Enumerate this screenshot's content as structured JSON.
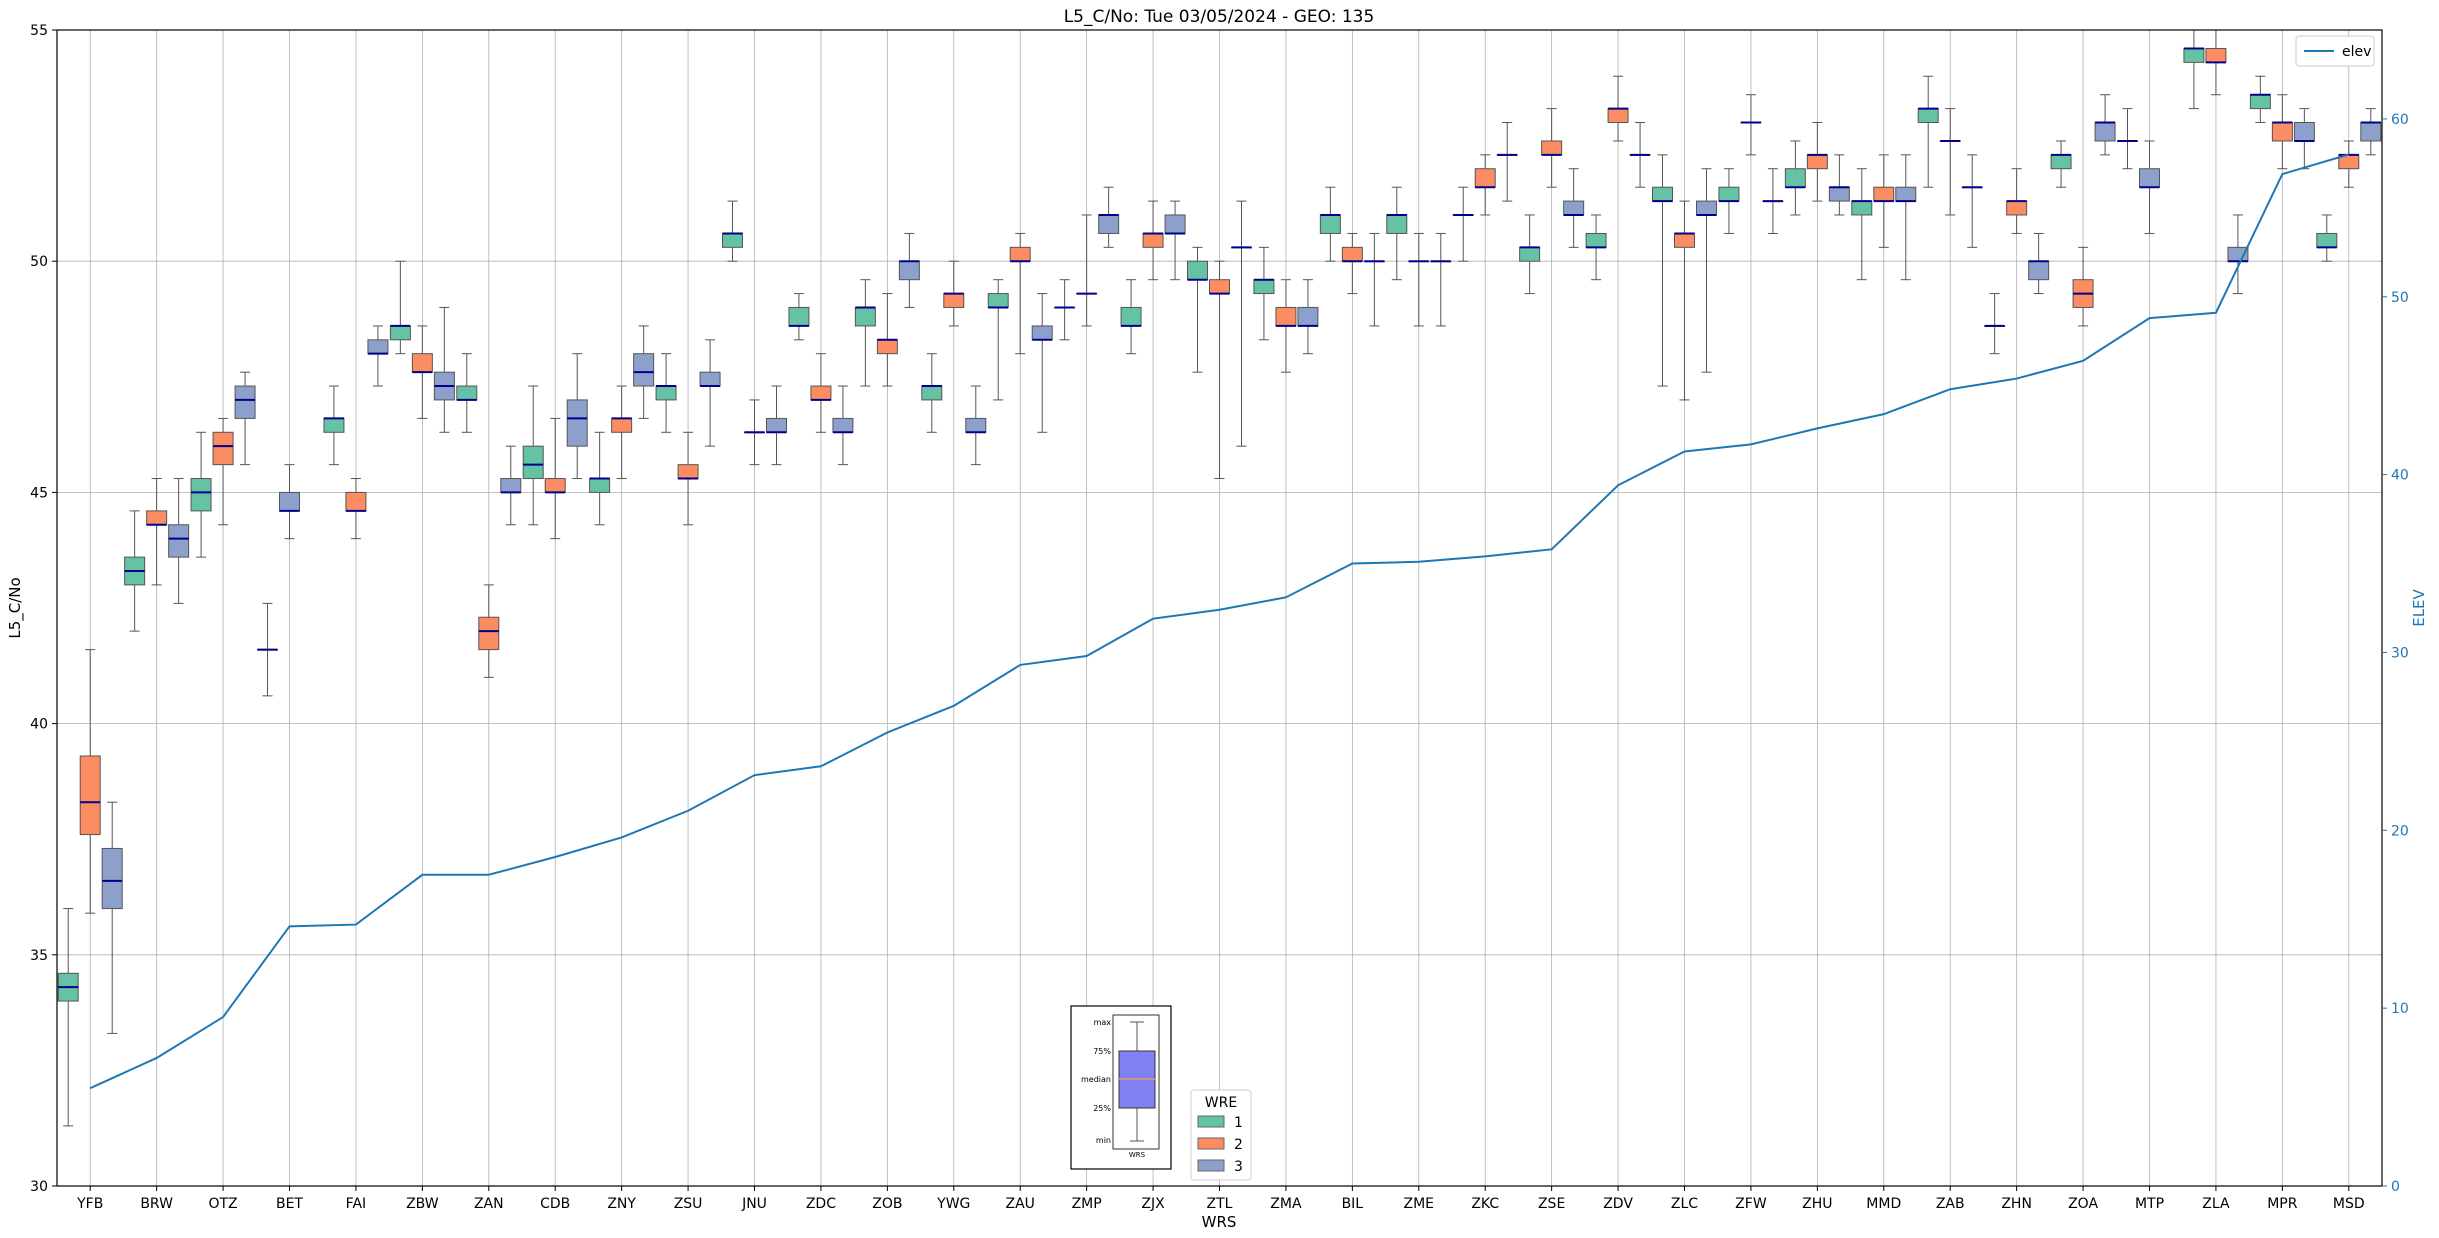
{
  "chart_data": {
    "type": "box",
    "title": "L5_C/No: Tue 03/05/2024 - GEO: 135",
    "xlabel": "WRS",
    "ylabel": "L5_C/No",
    "y2label": "ELEV",
    "ylim": [
      30,
      55
    ],
    "y2lim": [
      0,
      65
    ],
    "yticks": [
      30,
      35,
      40,
      45,
      50,
      55
    ],
    "y2ticks": [
      0,
      10,
      20,
      30,
      40,
      50,
      60
    ],
    "grid": true,
    "categories": [
      "YFB",
      "BRW",
      "OTZ",
      "BET",
      "FAI",
      "ZBW",
      "ZAN",
      "CDB",
      "ZNY",
      "ZSU",
      "JNU",
      "ZDC",
      "ZOB",
      "YWG",
      "ZAU",
      "ZMP",
      "ZJX",
      "ZTL",
      "ZMA",
      "BIL",
      "ZME",
      "ZKC",
      "ZSE",
      "ZDV",
      "ZLC",
      "ZFW",
      "ZHU",
      "MMD",
      "ZAB",
      "ZHN",
      "ZOA",
      "MTP",
      "ZLA",
      "MPR",
      "MSD"
    ],
    "wre_colors": {
      "1": "#66c2a5",
      "2": "#fc8d62",
      "3": "#8da0cb"
    },
    "median_color": "#00008b",
    "legend_wre": {
      "title": "WRE",
      "entries": [
        "1",
        "2",
        "3"
      ],
      "placement": "bottom-center"
    },
    "legend_elev": {
      "entries": [
        "elev"
      ],
      "placement": "top-right",
      "color": "#1f77b4"
    },
    "inset_key": {
      "labels": [
        "max",
        "75%",
        "median",
        "25%",
        "min"
      ],
      "xlabel": "WRS",
      "placement": "bottom-center"
    },
    "boxes": [
      {
        "site": "YFB",
        "wre": 1,
        "min": 31.3,
        "q1": 34.0,
        "median": 34.3,
        "q3": 34.6,
        "max": 36.0
      },
      {
        "site": "YFB",
        "wre": 2,
        "min": 35.9,
        "q1": 37.6,
        "median": 38.3,
        "q3": 39.3,
        "max": 41.6
      },
      {
        "site": "YFB",
        "wre": 3,
        "min": 33.3,
        "q1": 36.0,
        "median": 36.6,
        "q3": 37.3,
        "max": 38.3
      },
      {
        "site": "BRW",
        "wre": 1,
        "min": 42.0,
        "q1": 43.0,
        "median": 43.3,
        "q3": 43.6,
        "max": 44.6
      },
      {
        "site": "BRW",
        "wre": 2,
        "min": 43.0,
        "q1": 44.3,
        "median": 44.3,
        "q3": 44.6,
        "max": 45.3
      },
      {
        "site": "BRW",
        "wre": 3,
        "min": 42.6,
        "q1": 43.6,
        "median": 44.0,
        "q3": 44.3,
        "max": 45.3
      },
      {
        "site": "OTZ",
        "wre": 1,
        "min": 43.6,
        "q1": 44.6,
        "median": 45.0,
        "q3": 45.3,
        "max": 46.3
      },
      {
        "site": "OTZ",
        "wre": 2,
        "min": 44.3,
        "q1": 45.6,
        "median": 46.0,
        "q3": 46.3,
        "max": 46.6
      },
      {
        "site": "OTZ",
        "wre": 3,
        "min": 45.6,
        "q1": 46.6,
        "median": 47.0,
        "q3": 47.3,
        "max": 47.6
      },
      {
        "site": "BET",
        "wre": 2,
        "min": 40.6,
        "q1": 41.6,
        "median": 41.6,
        "q3": 41.6,
        "max": 42.6
      },
      {
        "site": "BET",
        "wre": 3,
        "min": 44.0,
        "q1": 44.6,
        "median": 44.6,
        "q3": 45.0,
        "max": 45.6
      },
      {
        "site": "FAI",
        "wre": 1,
        "min": 45.6,
        "q1": 46.3,
        "median": 46.6,
        "q3": 46.6,
        "max": 47.3
      },
      {
        "site": "FAI",
        "wre": 2,
        "min": 44.0,
        "q1": 44.6,
        "median": 44.6,
        "q3": 45.0,
        "max": 45.3
      },
      {
        "site": "FAI",
        "wre": 3,
        "min": 47.3,
        "q1": 48.0,
        "median": 48.0,
        "q3": 48.3,
        "max": 48.6
      },
      {
        "site": "ZBW",
        "wre": 1,
        "min": 48.0,
        "q1": 48.3,
        "median": 48.6,
        "q3": 48.6,
        "max": 50.0
      },
      {
        "site": "ZBW",
        "wre": 2,
        "min": 46.6,
        "q1": 47.6,
        "median": 47.6,
        "q3": 48.0,
        "max": 48.6
      },
      {
        "site": "ZBW",
        "wre": 3,
        "min": 46.3,
        "q1": 47.0,
        "median": 47.3,
        "q3": 47.6,
        "max": 49.0
      },
      {
        "site": "ZAN",
        "wre": 1,
        "min": 46.3,
        "q1": 47.0,
        "median": 47.0,
        "q3": 47.3,
        "max": 48.0
      },
      {
        "site": "ZAN",
        "wre": 2,
        "min": 41.0,
        "q1": 41.6,
        "median": 42.0,
        "q3": 42.3,
        "max": 43.0
      },
      {
        "site": "ZAN",
        "wre": 3,
        "min": 44.3,
        "q1": 45.0,
        "median": 45.0,
        "q3": 45.3,
        "max": 46.0
      },
      {
        "site": "CDB",
        "wre": 1,
        "min": 44.3,
        "q1": 45.3,
        "median": 45.6,
        "q3": 46.0,
        "max": 47.3
      },
      {
        "site": "CDB",
        "wre": 2,
        "min": 44.0,
        "q1": 45.0,
        "median": 45.0,
        "q3": 45.3,
        "max": 46.6
      },
      {
        "site": "CDB",
        "wre": 3,
        "min": 45.3,
        "q1": 46.0,
        "median": 46.6,
        "q3": 47.0,
        "max": 48.0
      },
      {
        "site": "ZNY",
        "wre": 1,
        "min": 44.3,
        "q1": 45.0,
        "median": 45.3,
        "q3": 45.3,
        "max": 46.3
      },
      {
        "site": "ZNY",
        "wre": 2,
        "min": 45.3,
        "q1": 46.3,
        "median": 46.6,
        "q3": 46.6,
        "max": 47.3
      },
      {
        "site": "ZNY",
        "wre": 3,
        "min": 46.6,
        "q1": 47.3,
        "median": 47.6,
        "q3": 48.0,
        "max": 48.6
      },
      {
        "site": "ZSU",
        "wre": 1,
        "min": 46.3,
        "q1": 47.0,
        "median": 47.3,
        "q3": 47.3,
        "max": 48.0
      },
      {
        "site": "ZSU",
        "wre": 2,
        "min": 44.3,
        "q1": 45.3,
        "median": 45.3,
        "q3": 45.6,
        "max": 46.3
      },
      {
        "site": "ZSU",
        "wre": 3,
        "min": 46.0,
        "q1": 47.3,
        "median": 47.3,
        "q3": 47.6,
        "max": 48.3
      },
      {
        "site": "JNU",
        "wre": 1,
        "min": 50.0,
        "q1": 50.3,
        "median": 50.6,
        "q3": 50.6,
        "max": 51.3
      },
      {
        "site": "JNU",
        "wre": 2,
        "min": 45.6,
        "q1": 46.3,
        "median": 46.3,
        "q3": 46.3,
        "max": 47.0
      },
      {
        "site": "JNU",
        "wre": 3,
        "min": 45.6,
        "q1": 46.3,
        "median": 46.3,
        "q3": 46.6,
        "max": 47.3
      },
      {
        "site": "ZDC",
        "wre": 1,
        "min": 48.3,
        "q1": 48.6,
        "median": 48.6,
        "q3": 49.0,
        "max": 49.3
      },
      {
        "site": "ZDC",
        "wre": 2,
        "min": 46.3,
        "q1": 47.0,
        "median": 47.0,
        "q3": 47.3,
        "max": 48.0
      },
      {
        "site": "ZDC",
        "wre": 3,
        "min": 45.6,
        "q1": 46.3,
        "median": 46.3,
        "q3": 46.6,
        "max": 47.3
      },
      {
        "site": "ZOB",
        "wre": 1,
        "min": 47.3,
        "q1": 48.6,
        "median": 49.0,
        "q3": 49.0,
        "max": 49.6
      },
      {
        "site": "ZOB",
        "wre": 2,
        "min": 47.3,
        "q1": 48.0,
        "median": 48.3,
        "q3": 48.3,
        "max": 49.3
      },
      {
        "site": "ZOB",
        "wre": 3,
        "min": 49.0,
        "q1": 49.6,
        "median": 50.0,
        "q3": 50.0,
        "max": 50.6
      },
      {
        "site": "YWG",
        "wre": 1,
        "min": 46.3,
        "q1": 47.0,
        "median": 47.3,
        "q3": 47.3,
        "max": 48.0
      },
      {
        "site": "YWG",
        "wre": 2,
        "min": 48.6,
        "q1": 49.0,
        "median": 49.3,
        "q3": 49.3,
        "max": 50.0
      },
      {
        "site": "YWG",
        "wre": 3,
        "min": 45.6,
        "q1": 46.3,
        "median": 46.3,
        "q3": 46.6,
        "max": 47.3
      },
      {
        "site": "ZAU",
        "wre": 1,
        "min": 47.0,
        "q1": 49.0,
        "median": 49.0,
        "q3": 49.3,
        "max": 49.6
      },
      {
        "site": "ZAU",
        "wre": 2,
        "min": 48.0,
        "q1": 50.0,
        "median": 50.0,
        "q3": 50.3,
        "max": 50.6
      },
      {
        "site": "ZAU",
        "wre": 3,
        "min": 46.3,
        "q1": 48.3,
        "median": 48.3,
        "q3": 48.6,
        "max": 49.3
      },
      {
        "site": "ZMP",
        "wre": 2,
        "min": 48.3,
        "q1": 49.0,
        "median": 49.0,
        "q3": 49.0,
        "max": 49.6
      },
      {
        "site": "ZMP",
        "wre": 2,
        "min": 48.6,
        "q1": 49.3,
        "median": 49.3,
        "q3": 49.3,
        "max": 51.0
      },
      {
        "site": "ZMP",
        "wre": 3,
        "min": 50.3,
        "q1": 50.6,
        "median": 51.0,
        "q3": 51.0,
        "max": 51.6
      },
      {
        "site": "ZJX",
        "wre": 1,
        "min": 48.0,
        "q1": 48.6,
        "median": 48.6,
        "q3": 49.0,
        "max": 49.6
      },
      {
        "site": "ZJX",
        "wre": 2,
        "min": 49.6,
        "q1": 50.3,
        "median": 50.6,
        "q3": 50.6,
        "max": 51.3
      },
      {
        "site": "ZJX",
        "wre": 3,
        "min": 49.6,
        "q1": 50.6,
        "median": 50.6,
        "q3": 51.0,
        "max": 51.3
      },
      {
        "site": "ZTL",
        "wre": 1,
        "min": 47.6,
        "q1": 49.6,
        "median": 49.6,
        "q3": 50.0,
        "max": 50.3
      },
      {
        "site": "ZTL",
        "wre": 2,
        "min": 45.3,
        "q1": 49.3,
        "median": 49.3,
        "q3": 49.6,
        "max": 50.0
      },
      {
        "site": "ZTL",
        "wre": 2,
        "min": 46.0,
        "q1": 50.3,
        "median": 50.3,
        "q3": 50.3,
        "max": 51.3
      },
      {
        "site": "ZMA",
        "wre": 1,
        "min": 48.3,
        "q1": 49.3,
        "median": 49.6,
        "q3": 49.6,
        "max": 50.3
      },
      {
        "site": "ZMA",
        "wre": 2,
        "min": 47.6,
        "q1": 48.6,
        "median": 48.6,
        "q3": 49.0,
        "max": 49.6
      },
      {
        "site": "ZMA",
        "wre": 3,
        "min": 48.0,
        "q1": 48.6,
        "median": 48.6,
        "q3": 49.0,
        "max": 49.6
      },
      {
        "site": "BIL",
        "wre": 1,
        "min": 50.0,
        "q1": 50.6,
        "median": 51.0,
        "q3": 51.0,
        "max": 51.6
      },
      {
        "site": "BIL",
        "wre": 2,
        "min": 49.3,
        "q1": 50.0,
        "median": 50.0,
        "q3": 50.3,
        "max": 50.6
      },
      {
        "site": "BIL",
        "wre": 2,
        "min": 48.6,
        "q1": 50.0,
        "median": 50.0,
        "q3": 50.0,
        "max": 50.6
      },
      {
        "site": "ZME",
        "wre": 1,
        "min": 49.6,
        "q1": 50.6,
        "median": 51.0,
        "q3": 51.0,
        "max": 51.6
      },
      {
        "site": "ZME",
        "wre": 2,
        "min": 48.6,
        "q1": 50.0,
        "median": 50.0,
        "q3": 50.0,
        "max": 50.6
      },
      {
        "site": "ZME",
        "wre": 2,
        "min": 48.6,
        "q1": 50.0,
        "median": 50.0,
        "q3": 50.0,
        "max": 50.6
      },
      {
        "site": "ZKC",
        "wre": 2,
        "min": 50.0,
        "q1": 51.0,
        "median": 51.0,
        "q3": 51.0,
        "max": 51.6
      },
      {
        "site": "ZKC",
        "wre": 2,
        "min": 51.0,
        "q1": 51.6,
        "median": 51.6,
        "q3": 52.0,
        "max": 52.3
      },
      {
        "site": "ZKC",
        "wre": 3,
        "min": 51.3,
        "q1": 52.3,
        "median": 52.3,
        "q3": 52.3,
        "max": 53.0
      },
      {
        "site": "ZSE",
        "wre": 1,
        "min": 49.3,
        "q1": 50.0,
        "median": 50.3,
        "q3": 50.3,
        "max": 51.0
      },
      {
        "site": "ZSE",
        "wre": 2,
        "min": 51.6,
        "q1": 52.3,
        "median": 52.3,
        "q3": 52.6,
        "max": 53.3
      },
      {
        "site": "ZSE",
        "wre": 3,
        "min": 50.3,
        "q1": 51.0,
        "median": 51.0,
        "q3": 51.3,
        "max": 52.0
      },
      {
        "site": "ZDV",
        "wre": 1,
        "min": 49.6,
        "q1": 50.3,
        "median": 50.3,
        "q3": 50.6,
        "max": 51.0
      },
      {
        "site": "ZDV",
        "wre": 2,
        "min": 52.6,
        "q1": 53.0,
        "median": 53.3,
        "q3": 53.3,
        "max": 54.0
      },
      {
        "site": "ZDV",
        "wre": 3,
        "min": 51.6,
        "q1": 52.3,
        "median": 52.3,
        "q3": 52.3,
        "max": 53.0
      },
      {
        "site": "ZLC",
        "wre": 1,
        "min": 47.3,
        "q1": 51.3,
        "median": 51.3,
        "q3": 51.6,
        "max": 52.3
      },
      {
        "site": "ZLC",
        "wre": 2,
        "min": 47.0,
        "q1": 50.3,
        "median": 50.6,
        "q3": 50.6,
        "max": 51.3
      },
      {
        "site": "ZLC",
        "wre": 3,
        "min": 47.6,
        "q1": 51.0,
        "median": 51.0,
        "q3": 51.3,
        "max": 52.0
      },
      {
        "site": "ZFW",
        "wre": 1,
        "min": 50.6,
        "q1": 51.3,
        "median": 51.3,
        "q3": 51.6,
        "max": 52.0
      },
      {
        "site": "ZFW",
        "wre": 3,
        "min": 52.3,
        "q1": 53.0,
        "median": 53.0,
        "q3": 53.0,
        "max": 53.6
      },
      {
        "site": "ZFW",
        "wre": 3,
        "min": 50.6,
        "q1": 51.3,
        "median": 51.3,
        "q3": 51.3,
        "max": 52.0
      },
      {
        "site": "ZHU",
        "wre": 1,
        "min": 51.0,
        "q1": 51.6,
        "median": 51.6,
        "q3": 52.0,
        "max": 52.6
      },
      {
        "site": "ZHU",
        "wre": 2,
        "min": 51.3,
        "q1": 52.0,
        "median": 52.3,
        "q3": 52.3,
        "max": 53.0
      },
      {
        "site": "ZHU",
        "wre": 3,
        "min": 51.0,
        "q1": 51.3,
        "median": 51.6,
        "q3": 51.6,
        "max": 52.3
      },
      {
        "site": "MMD",
        "wre": 1,
        "min": 49.6,
        "q1": 51.0,
        "median": 51.3,
        "q3": 51.3,
        "max": 52.0
      },
      {
        "site": "MMD",
        "wre": 2,
        "min": 50.3,
        "q1": 51.3,
        "median": 51.3,
        "q3": 51.6,
        "max": 52.3
      },
      {
        "site": "MMD",
        "wre": 3,
        "min": 49.6,
        "q1": 51.3,
        "median": 51.3,
        "q3": 51.6,
        "max": 52.3
      },
      {
        "site": "ZAB",
        "wre": 1,
        "min": 51.6,
        "q1": 53.0,
        "median": 53.3,
        "q3": 53.3,
        "max": 54.0
      },
      {
        "site": "ZAB",
        "wre": 3,
        "min": 51.0,
        "q1": 52.6,
        "median": 52.6,
        "q3": 52.6,
        "max": 53.3
      },
      {
        "site": "ZAB",
        "wre": 3,
        "min": 50.3,
        "q1": 51.6,
        "median": 51.6,
        "q3": 51.6,
        "max": 52.3
      },
      {
        "site": "ZHN",
        "wre": 1,
        "min": 48.0,
        "q1": 48.6,
        "median": 48.6,
        "q3": 48.6,
        "max": 49.3
      },
      {
        "site": "ZHN",
        "wre": 2,
        "min": 50.6,
        "q1": 51.0,
        "median": 51.3,
        "q3": 51.3,
        "max": 52.0
      },
      {
        "site": "ZHN",
        "wre": 3,
        "min": 49.3,
        "q1": 49.6,
        "median": 50.0,
        "q3": 50.0,
        "max": 50.6
      },
      {
        "site": "ZOA",
        "wre": 1,
        "min": 51.6,
        "q1": 52.0,
        "median": 52.3,
        "q3": 52.3,
        "max": 52.6
      },
      {
        "site": "ZOA",
        "wre": 2,
        "min": 48.6,
        "q1": 49.0,
        "median": 49.3,
        "q3": 49.6,
        "max": 50.3
      },
      {
        "site": "ZOA",
        "wre": 3,
        "min": 52.3,
        "q1": 52.6,
        "median": 53.0,
        "q3": 53.0,
        "max": 53.6
      },
      {
        "site": "MTP",
        "wre": 3,
        "min": 52.0,
        "q1": 52.6,
        "median": 52.6,
        "q3": 52.6,
        "max": 53.3
      },
      {
        "site": "MTP",
        "wre": 3,
        "min": 50.6,
        "q1": 51.6,
        "median": 51.6,
        "q3": 52.0,
        "max": 52.6
      },
      {
        "site": "ZLA",
        "wre": 1,
        "min": 53.3,
        "q1": 54.3,
        "median": 54.6,
        "q3": 54.6,
        "max": 55.0
      },
      {
        "site": "ZLA",
        "wre": 2,
        "min": 53.6,
        "q1": 54.3,
        "median": 54.3,
        "q3": 54.6,
        "max": 55.0
      },
      {
        "site": "ZLA",
        "wre": 3,
        "min": 49.3,
        "q1": 50.0,
        "median": 50.0,
        "q3": 50.3,
        "max": 51.0
      },
      {
        "site": "MPR",
        "wre": 1,
        "min": 53.0,
        "q1": 53.3,
        "median": 53.6,
        "q3": 53.6,
        "max": 54.0
      },
      {
        "site": "MPR",
        "wre": 2,
        "min": 52.0,
        "q1": 52.6,
        "median": 53.0,
        "q3": 53.0,
        "max": 53.6
      },
      {
        "site": "MPR",
        "wre": 3,
        "min": 52.0,
        "q1": 52.6,
        "median": 52.6,
        "q3": 53.0,
        "max": 53.3
      },
      {
        "site": "MSD",
        "wre": 1,
        "min": 50.0,
        "q1": 50.3,
        "median": 50.3,
        "q3": 50.6,
        "max": 51.0
      },
      {
        "site": "MSD",
        "wre": 2,
        "min": 51.6,
        "q1": 52.0,
        "median": 52.3,
        "q3": 52.3,
        "max": 52.6
      },
      {
        "site": "MSD",
        "wre": 3,
        "min": 52.3,
        "q1": 52.6,
        "median": 53.0,
        "q3": 53.0,
        "max": 53.3
      }
    ],
    "elev_series": {
      "name": "elev",
      "values": [
        5.5,
        7.2,
        9.5,
        14.6,
        14.7,
        17.5,
        17.5,
        18.5,
        19.6,
        21.1,
        23.1,
        23.6,
        25.5,
        27.0,
        29.3,
        29.8,
        31.9,
        32.4,
        33.1,
        35.0,
        35.1,
        35.4,
        35.8,
        39.4,
        41.3,
        41.7,
        42.6,
        43.4,
        44.8,
        45.4,
        46.4,
        48.8,
        49.1,
        56.9,
        58.0
      ]
    }
  }
}
